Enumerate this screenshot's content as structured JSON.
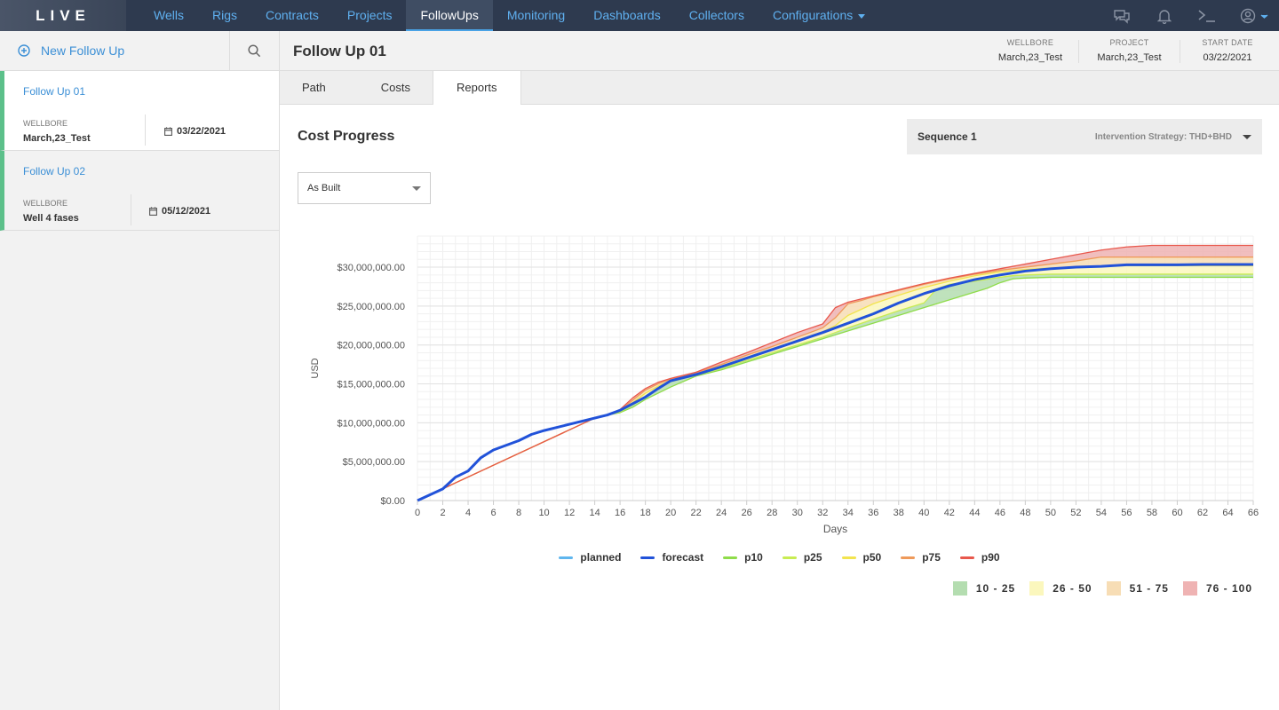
{
  "app": {
    "logo": "LIVE"
  },
  "nav": {
    "items": [
      {
        "label": "Wells"
      },
      {
        "label": "Rigs"
      },
      {
        "label": "Contracts"
      },
      {
        "label": "Projects"
      },
      {
        "label": "FollowUps"
      },
      {
        "label": "Monitoring"
      },
      {
        "label": "Dashboards"
      },
      {
        "label": "Collectors"
      },
      {
        "label": "Configurations"
      }
    ],
    "active": "FollowUps"
  },
  "sidebar": {
    "new_label": "New Follow Up",
    "items": [
      {
        "title": "Follow Up 01",
        "wellbore_label": "WELLBORE",
        "wellbore": "March,23_Test",
        "date": "03/22/2021"
      },
      {
        "title": "Follow Up 02",
        "wellbore_label": "WELLBORE",
        "wellbore": "Well 4 fases",
        "date": "05/12/2021"
      }
    ]
  },
  "header": {
    "title": "Follow Up 01",
    "wellbore_label": "WELLBORE",
    "wellbore": "March,23_Test",
    "project_label": "PROJECT",
    "project": "March,23_Test",
    "start_label": "START DATE",
    "start": "03/22/2021"
  },
  "tabs": [
    {
      "label": "Path"
    },
    {
      "label": "Costs"
    },
    {
      "label": "Reports"
    }
  ],
  "report": {
    "title": "Cost Progress",
    "sequence": "Sequence 1",
    "strategy": "Intervention Strategy: THD+BHD",
    "view_select": "As Built"
  },
  "colors": {
    "planned": "#5fb6ee",
    "forecast": "#2152d9",
    "p10": "#8fdc4a",
    "p25": "#c8ec52",
    "p50": "#f2e44e",
    "p75": "#ef9a5a",
    "p90": "#e8584c",
    "band_10_25": "#b4ddb0",
    "band_26_50": "#fbf7bd",
    "band_51_75": "#f7ddb5",
    "band_76_100": "#efb3b3"
  },
  "chart_data": {
    "type": "area",
    "xlabel": "Days",
    "ylabel": "USD",
    "xlim": [
      0,
      66
    ],
    "ylim": [
      0,
      34000000
    ],
    "x_ticks": [
      0,
      2,
      4,
      6,
      8,
      10,
      12,
      14,
      16,
      18,
      20,
      22,
      24,
      26,
      28,
      30,
      32,
      34,
      36,
      38,
      40,
      42,
      44,
      46,
      48,
      50,
      52,
      54,
      56,
      58,
      60,
      62,
      64,
      66
    ],
    "y_ticks": [
      0,
      5000000,
      10000000,
      15000000,
      20000000,
      25000000,
      30000000
    ],
    "y_tick_labels": [
      "$0.00",
      "$5,000,000.00",
      "$10,000,000.00",
      "$15,000,000.00",
      "$20,000,000.00",
      "$25,000,000.00",
      "$30,000,000.00"
    ],
    "grid": true,
    "legend_position": "bottom-center",
    "series": [
      {
        "name": "planned",
        "x": [
          0,
          2,
          3,
          4,
          5,
          6,
          8,
          9,
          10,
          12,
          14,
          15,
          16,
          18,
          19,
          20,
          22,
          24,
          26,
          28,
          30,
          32,
          34,
          36,
          38,
          40,
          42,
          44,
          46,
          48,
          50,
          52,
          54,
          56,
          58,
          60,
          62,
          64,
          66
        ],
        "y": [
          0,
          1500000,
          3000000,
          3800000,
          5500000,
          6500000,
          7700000,
          8500000,
          9000000,
          9800000,
          10600000,
          11000000,
          11600000,
          13300000,
          14400000,
          15400000,
          16200000,
          17200000,
          18300000,
          19400000,
          20500000,
          21600000,
          22800000,
          24000000,
          25400000,
          26600000,
          27600000,
          28400000,
          29000000,
          29500000,
          29800000,
          30000000,
          30100000,
          30300000,
          30300000,
          30300000,
          30350000,
          30350000,
          30350000
        ]
      },
      {
        "name": "forecast",
        "x": [
          0,
          2,
          3,
          4,
          5,
          6,
          8,
          9,
          10,
          12,
          14,
          15,
          16,
          18,
          19,
          20,
          22,
          24,
          26,
          28,
          30,
          32,
          34,
          36,
          38,
          40,
          42,
          44,
          46,
          48,
          50,
          52,
          54,
          56,
          58,
          60,
          62,
          64,
          66
        ],
        "y": [
          0,
          1500000,
          3000000,
          3800000,
          5500000,
          6500000,
          7700000,
          8500000,
          9000000,
          9800000,
          10600000,
          11000000,
          11600000,
          13300000,
          14400000,
          15400000,
          16200000,
          17200000,
          18300000,
          19400000,
          20500000,
          21600000,
          22800000,
          24000000,
          25400000,
          26600000,
          27600000,
          28400000,
          29000000,
          29500000,
          29800000,
          30000000,
          30100000,
          30300000,
          30300000,
          30300000,
          30350000,
          30350000,
          30350000
        ]
      },
      {
        "name": "p10",
        "x": [
          0,
          14,
          15,
          16,
          17,
          18,
          19,
          20,
          22,
          24,
          26,
          28,
          30,
          32,
          34,
          36,
          38,
          40,
          42,
          44,
          45,
          46,
          47,
          48,
          50,
          52,
          54,
          56,
          58,
          60,
          62,
          64,
          66
        ],
        "y": [
          0,
          10600000,
          11000000,
          11300000,
          12000000,
          13000000,
          13800000,
          14600000,
          16000000,
          16800000,
          17800000,
          18800000,
          19800000,
          20800000,
          21800000,
          22800000,
          23800000,
          24800000,
          25800000,
          26800000,
          27300000,
          28000000,
          28500000,
          28600000,
          28700000,
          28700000,
          28700000,
          28700000,
          28700000,
          28700000,
          28700000,
          28700000,
          28700000
        ]
      },
      {
        "name": "p25",
        "x": [
          0,
          14,
          15,
          16,
          17,
          18,
          19,
          20,
          22,
          24,
          26,
          28,
          30,
          32,
          34,
          36,
          38,
          40,
          41,
          42,
          44,
          46,
          47,
          48,
          50,
          52,
          54,
          56,
          58,
          60,
          62,
          64,
          66
        ],
        "y": [
          0,
          10600000,
          11000000,
          11400000,
          12300000,
          13400000,
          14400000,
          15300000,
          16100000,
          17000000,
          18000000,
          19000000,
          20000000,
          21000000,
          22200000,
          23300000,
          24400000,
          25400000,
          27200000,
          27800000,
          28200000,
          28700000,
          28900000,
          29000000,
          29100000,
          29100000,
          29100000,
          29100000,
          29100000,
          29100000,
          29100000,
          29100000,
          29100000
        ]
      },
      {
        "name": "p50",
        "x": [
          0,
          14,
          15,
          16,
          17,
          18,
          19,
          20,
          22,
          24,
          26,
          28,
          30,
          32,
          33,
          34,
          36,
          38,
          40,
          42,
          44,
          46,
          48,
          50,
          52,
          54,
          56,
          58,
          60,
          62,
          64,
          66
        ],
        "y": [
          0,
          10600000,
          11000000,
          11500000,
          12600000,
          13800000,
          14700000,
          15400000,
          16200000,
          17300000,
          18400000,
          19500000,
          20600000,
          21700000,
          22500000,
          23800000,
          25300000,
          26400000,
          27400000,
          28200000,
          28900000,
          29400000,
          29700000,
          29900000,
          30000000,
          30100000,
          30200000,
          30200000,
          30200000,
          30200000,
          30200000,
          30200000
        ]
      },
      {
        "name": "p75",
        "x": [
          0,
          14,
          15,
          16,
          17,
          18,
          19,
          20,
          22,
          24,
          26,
          28,
          30,
          32,
          33,
          34,
          35,
          36,
          38,
          40,
          42,
          44,
          46,
          48,
          50,
          52,
          54,
          56,
          58,
          60,
          62,
          64,
          66
        ],
        "y": [
          0,
          10600000,
          11000000,
          11600000,
          12900000,
          14200000,
          15000000,
          15600000,
          16400000,
          17500000,
          18700000,
          19800000,
          21000000,
          22200000,
          23500000,
          25300000,
          25700000,
          26200000,
          27000000,
          27800000,
          28500000,
          29100000,
          29600000,
          30000000,
          30400000,
          30800000,
          31300000,
          31300000,
          31300000,
          31300000,
          31300000,
          31300000,
          31300000
        ]
      },
      {
        "name": "p90",
        "x": [
          0,
          14,
          15,
          16,
          17,
          18,
          19,
          20,
          22,
          24,
          26,
          28,
          30,
          32,
          33,
          34,
          36,
          38,
          40,
          42,
          44,
          46,
          48,
          50,
          52,
          54,
          56,
          57,
          58,
          60,
          62,
          64,
          66
        ],
        "y": [
          0,
          10600000,
          11000000,
          11700000,
          13200000,
          14400000,
          15200000,
          15700000,
          16500000,
          17800000,
          19000000,
          20300000,
          21600000,
          22700000,
          24800000,
          25500000,
          26300000,
          27100000,
          27900000,
          28600000,
          29200000,
          29800000,
          30400000,
          31000000,
          31600000,
          32200000,
          32600000,
          32700000,
          32800000,
          32800000,
          32800000,
          32800000,
          32800000
        ]
      }
    ],
    "legend": [
      "planned",
      "forecast",
      "p10",
      "p25",
      "p50",
      "p75",
      "p90"
    ],
    "bands": [
      {
        "label": "10 - 25",
        "from": "p10",
        "to": "p25"
      },
      {
        "label": "26 - 50",
        "from": "p25",
        "to": "p50"
      },
      {
        "label": "51 - 75",
        "from": "p50",
        "to": "p75"
      },
      {
        "label": "76 - 100",
        "from": "p75",
        "to": "p90"
      }
    ]
  }
}
